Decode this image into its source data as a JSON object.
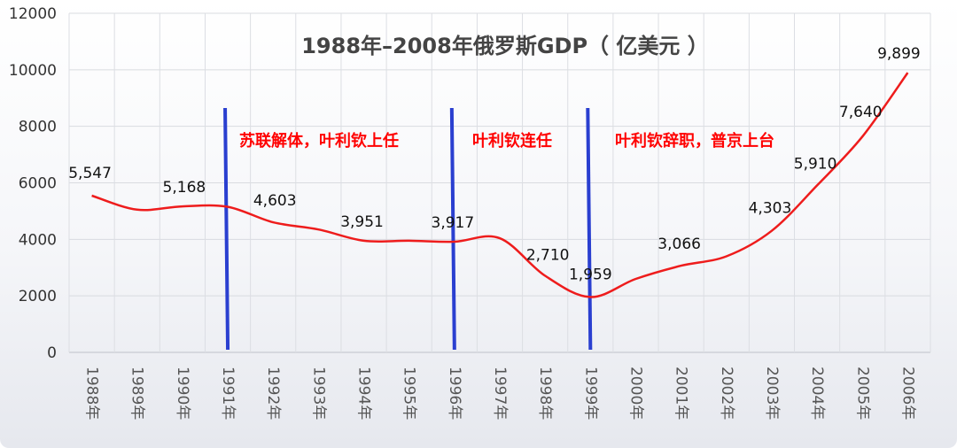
{
  "chart_data": {
    "type": "line",
    "title": "1988年–2008年俄罗斯GDP（ 亿美元 ）",
    "xlabel": "",
    "ylabel": "",
    "ylim": [
      0,
      12000
    ],
    "yticks": [
      0,
      2000,
      4000,
      6000,
      8000,
      10000,
      12000
    ],
    "grid": true,
    "categories": [
      "1988年",
      "1989年",
      "1990年",
      "1991年",
      "1992年",
      "1993年",
      "1994年",
      "1995年",
      "1996年",
      "1997年",
      "1998年",
      "1999年",
      "2000年",
      "2001年",
      "2002年",
      "2003年",
      "2004年",
      "2005年",
      "2006年"
    ],
    "series": [
      {
        "values": [
          5547,
          5050,
          5168,
          5150,
          4603,
          4350,
          3951,
          3950,
          3917,
          4040,
          2710,
          1959,
          2600,
          3066,
          3400,
          4303,
          5910,
          7640,
          9899
        ],
        "color": "#ee1c1c"
      }
    ],
    "data_labels": [
      {
        "index": 0,
        "text": "5,547"
      },
      {
        "index": 2,
        "text": "5,168"
      },
      {
        "index": 4,
        "text": "4,603"
      },
      {
        "index": 6,
        "text": "3,951"
      },
      {
        "index": 8,
        "text": "3,917"
      },
      {
        "index": 10,
        "text": "2,710"
      },
      {
        "index": 11,
        "text": "1,959"
      },
      {
        "index": 13,
        "text": "3,066"
      },
      {
        "index": 15,
        "text": "4,303"
      },
      {
        "index": 16,
        "text": "5,910"
      },
      {
        "index": 17,
        "text": "7,640"
      },
      {
        "index": 18,
        "text": "9,899"
      }
    ],
    "event_lines": [
      {
        "category": "1991年",
        "color": "#2a3fd0"
      },
      {
        "category": "1996年",
        "color": "#2a3fd0"
      },
      {
        "category": "1999年",
        "color": "#2a3fd0"
      }
    ],
    "annotations": [
      {
        "text": "苏联解体，叶利钦上任",
        "color": "#ff0000"
      },
      {
        "text": "叶利钦连任",
        "color": "#ff0000"
      },
      {
        "text": "叶利钦辞职，普京上台",
        "color": "#ff0000"
      }
    ]
  }
}
